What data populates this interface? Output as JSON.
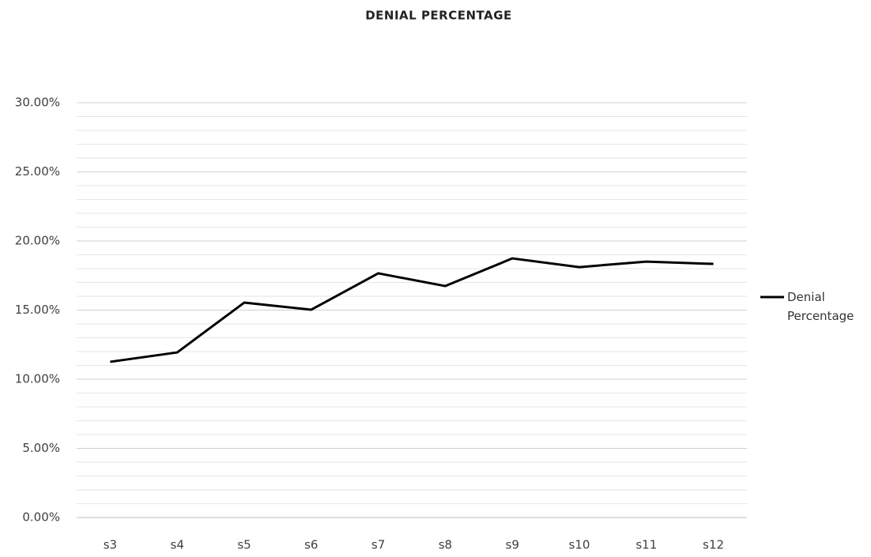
{
  "chart_data": {
    "type": "line",
    "title": "DENIAL PERCENTAGE",
    "categories": [
      "s3",
      "s4",
      "s5",
      "s6",
      "s7",
      "s8",
      "s9",
      "s10",
      "s11",
      "s12"
    ],
    "series": [
      {
        "name": "Denial Percentage",
        "color": "#000000",
        "values": [
          11.26,
          11.94,
          15.54,
          15.03,
          17.66,
          16.74,
          18.74,
          18.11,
          18.51,
          18.34
        ]
      }
    ],
    "ylim": [
      0,
      30
    ],
    "yticks": [
      {
        "value": 0,
        "label": "0.00%"
      },
      {
        "value": 5,
        "label": "5.00%"
      },
      {
        "value": 10,
        "label": "10.00%"
      },
      {
        "value": 15,
        "label": "15.00%"
      },
      {
        "value": 20,
        "label": "20.00%"
      },
      {
        "value": 25,
        "label": "25.00%"
      },
      {
        "value": 30,
        "label": "30.00%"
      }
    ],
    "minor_yticks": [
      1,
      2,
      3,
      4,
      6,
      7,
      8,
      9,
      11,
      12,
      13,
      14,
      16,
      17,
      18,
      19,
      21,
      22,
      23,
      24,
      26,
      27,
      28,
      29
    ],
    "grid": true,
    "legend": "right"
  }
}
